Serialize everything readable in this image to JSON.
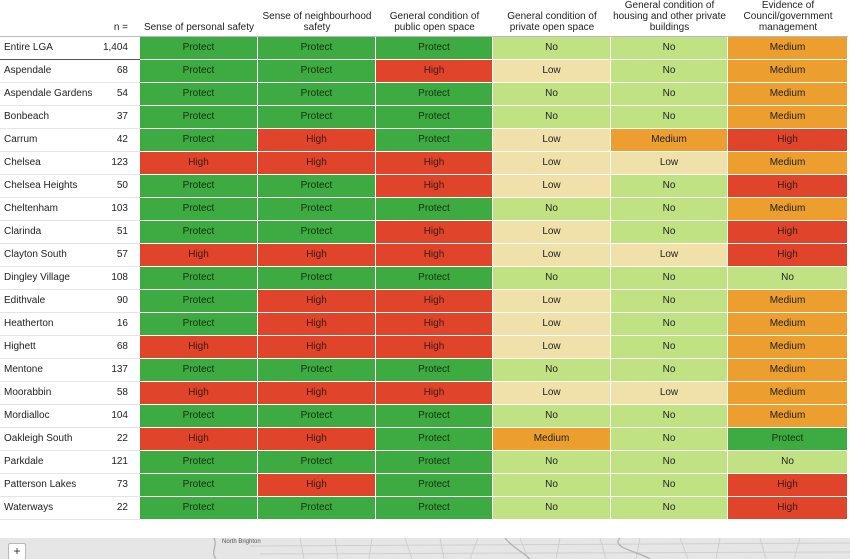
{
  "chart_data": {
    "type": "heatmap",
    "n_label": "n =",
    "columns": [
      "Sense of personal safety",
      "Sense of neighbourhood safety",
      "General condition of public open space",
      "General condition of private open space",
      "General condition of housing and other private buildings",
      "Evidence of Council/government management"
    ],
    "rows": [
      {
        "area": "Entire LGA",
        "n": "1,404",
        "values": [
          "Protect",
          "Protect",
          "Protect",
          "No",
          "No",
          "Medium"
        ]
      },
      {
        "area": "Aspendale",
        "n": "68",
        "values": [
          "Protect",
          "Protect",
          "High",
          "Low",
          "No",
          "Medium"
        ]
      },
      {
        "area": "Aspendale Gardens",
        "n": "54",
        "values": [
          "Protect",
          "Protect",
          "Protect",
          "No",
          "No",
          "Medium"
        ]
      },
      {
        "area": "Bonbeach",
        "n": "37",
        "values": [
          "Protect",
          "Protect",
          "Protect",
          "No",
          "No",
          "Medium"
        ]
      },
      {
        "area": "Carrum",
        "n": "42",
        "values": [
          "Protect",
          "High",
          "Protect",
          "Low",
          "Medium",
          "High"
        ]
      },
      {
        "area": "Chelsea",
        "n": "123",
        "values": [
          "High",
          "High",
          "High",
          "Low",
          "Low",
          "Medium"
        ]
      },
      {
        "area": "Chelsea Heights",
        "n": "50",
        "values": [
          "Protect",
          "Protect",
          "High",
          "Low",
          "No",
          "High"
        ]
      },
      {
        "area": "Cheltenham",
        "n": "103",
        "values": [
          "Protect",
          "Protect",
          "Protect",
          "No",
          "No",
          "Medium"
        ]
      },
      {
        "area": "Clarinda",
        "n": "51",
        "values": [
          "Protect",
          "Protect",
          "High",
          "Low",
          "No",
          "High"
        ]
      },
      {
        "area": "Clayton South",
        "n": "57",
        "values": [
          "High",
          "High",
          "High",
          "Low",
          "Low",
          "High"
        ]
      },
      {
        "area": "Dingley Village",
        "n": "108",
        "values": [
          "Protect",
          "Protect",
          "Protect",
          "No",
          "No",
          "No"
        ]
      },
      {
        "area": "Edithvale",
        "n": "90",
        "values": [
          "Protect",
          "High",
          "High",
          "Low",
          "No",
          "Medium"
        ]
      },
      {
        "area": "Heatherton",
        "n": "16",
        "values": [
          "Protect",
          "High",
          "High",
          "Low",
          "No",
          "Medium"
        ]
      },
      {
        "area": "Highett",
        "n": "68",
        "values": [
          "High",
          "High",
          "High",
          "Low",
          "No",
          "Medium"
        ]
      },
      {
        "area": "Mentone",
        "n": "137",
        "values": [
          "Protect",
          "Protect",
          "Protect",
          "No",
          "No",
          "Medium"
        ]
      },
      {
        "area": "Moorabbin",
        "n": "58",
        "values": [
          "High",
          "High",
          "High",
          "Low",
          "Low",
          "Medium"
        ]
      },
      {
        "area": "Mordialloc",
        "n": "104",
        "values": [
          "Protect",
          "Protect",
          "Protect",
          "No",
          "No",
          "Medium"
        ]
      },
      {
        "area": "Oakleigh South",
        "n": "22",
        "values": [
          "High",
          "High",
          "Protect",
          "Medium",
          "No",
          "Protect"
        ]
      },
      {
        "area": "Parkdale",
        "n": "121",
        "values": [
          "Protect",
          "Protect",
          "Protect",
          "No",
          "No",
          "No"
        ]
      },
      {
        "area": "Patterson Lakes",
        "n": "73",
        "values": [
          "Protect",
          "High",
          "Protect",
          "No",
          "No",
          "High"
        ]
      },
      {
        "area": "Waterways",
        "n": "22",
        "values": [
          "Protect",
          "Protect",
          "Protect",
          "No",
          "No",
          "High"
        ]
      }
    ],
    "colors": {
      "Protect": "#3daa42",
      "High": "#e0452b",
      "Medium": "#ec9e2e",
      "Low": "#efe1a9",
      "No": "#c0e283"
    }
  },
  "map": {
    "zoom_in_label": "+",
    "place_label": "North Brighton"
  }
}
